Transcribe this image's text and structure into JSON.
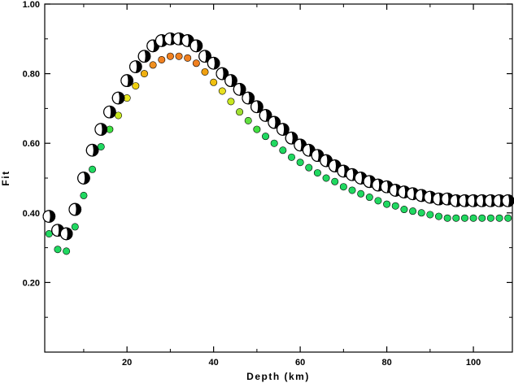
{
  "chart_data": {
    "type": "scatter",
    "title": "",
    "xlabel": "Depth (km)",
    "ylabel": "Fit",
    "xlim": [
      1,
      109
    ],
    "ylim": [
      0.0,
      1.0
    ],
    "x_ticks": [
      20,
      40,
      60,
      80,
      100
    ],
    "y_ticks": [
      0.2,
      0.4,
      0.6,
      0.8,
      1.0
    ],
    "x_tick_labels": [
      "20",
      "40",
      "60",
      "80",
      "100"
    ],
    "y_tick_labels": [
      "0.20",
      "0.40",
      "0.60",
      "0.80",
      "1.00"
    ],
    "grid": false,
    "legend": "none",
    "series": [
      {
        "role": "best-fit mechanism (beach ball)",
        "marker": "focal-mechanism",
        "x": [
          2,
          4,
          6,
          8,
          10,
          12,
          14,
          16,
          18,
          20,
          22,
          24,
          26,
          28,
          30,
          32,
          34,
          36,
          38,
          40,
          42,
          44,
          46,
          48,
          50,
          52,
          54,
          56,
          58,
          60,
          62,
          64,
          66,
          68,
          70,
          72,
          74,
          76,
          78,
          80,
          82,
          84,
          86,
          88,
          90,
          92,
          94,
          96,
          98,
          100,
          102,
          104,
          106,
          108
        ],
        "y": [
          0.39,
          0.35,
          0.34,
          0.41,
          0.5,
          0.58,
          0.64,
          0.69,
          0.73,
          0.78,
          0.82,
          0.85,
          0.88,
          0.895,
          0.9,
          0.9,
          0.895,
          0.88,
          0.85,
          0.83,
          0.8,
          0.78,
          0.755,
          0.73,
          0.705,
          0.68,
          0.66,
          0.64,
          0.615,
          0.595,
          0.58,
          0.565,
          0.55,
          0.535,
          0.52,
          0.51,
          0.5,
          0.49,
          0.48,
          0.475,
          0.465,
          0.46,
          0.455,
          0.45,
          0.445,
          0.44,
          0.44,
          0.435,
          0.435,
          0.435,
          0.435,
          0.435,
          0.435,
          0.435
        ]
      },
      {
        "role": "fit of alternative solution (colored by quality)",
        "marker": "circle",
        "x": [
          2,
          4,
          6,
          8,
          10,
          12,
          14,
          16,
          18,
          20,
          22,
          24,
          26,
          28,
          30,
          32,
          34,
          36,
          38,
          40,
          42,
          44,
          46,
          48,
          50,
          52,
          54,
          56,
          58,
          60,
          62,
          64,
          66,
          68,
          70,
          72,
          74,
          76,
          78,
          80,
          82,
          84,
          86,
          88,
          90,
          92,
          94,
          96,
          98,
          100,
          102,
          104,
          106,
          108
        ],
        "y": [
          0.34,
          0.295,
          0.29,
          0.36,
          0.45,
          0.525,
          0.59,
          0.64,
          0.68,
          0.73,
          0.765,
          0.8,
          0.825,
          0.84,
          0.85,
          0.85,
          0.845,
          0.83,
          0.805,
          0.775,
          0.75,
          0.72,
          0.69,
          0.665,
          0.64,
          0.62,
          0.6,
          0.58,
          0.56,
          0.545,
          0.53,
          0.515,
          0.5,
          0.49,
          0.475,
          0.465,
          0.455,
          0.445,
          0.435,
          0.425,
          0.42,
          0.41,
          0.405,
          0.4,
          0.395,
          0.39,
          0.385,
          0.385,
          0.385,
          0.385,
          0.385,
          0.385,
          0.385,
          0.385
        ],
        "colors": [
          "#20d860",
          "#20d860",
          "#20d860",
          "#20d860",
          "#20d860",
          "#20d860",
          "#20d860",
          "#40e040",
          "#c8e820",
          "#e8e820",
          "#f0d010",
          "#f0b010",
          "#f09020",
          "#f08020",
          "#f08020",
          "#f08020",
          "#f08020",
          "#f08020",
          "#f0a010",
          "#f0c010",
          "#e8e020",
          "#c8e820",
          "#a0e030",
          "#60e040",
          "#40e040",
          "#20d860",
          "#20d860",
          "#20d860",
          "#20d860",
          "#20d860",
          "#20d860",
          "#20d860",
          "#20d860",
          "#20d860",
          "#20d860",
          "#20d860",
          "#20d860",
          "#20d860",
          "#20d860",
          "#20d860",
          "#20d860",
          "#20d860",
          "#20d860",
          "#20d860",
          "#20d860",
          "#20d860",
          "#20d860",
          "#20d860",
          "#20d860",
          "#20d860",
          "#20d860",
          "#20d860",
          "#20d860",
          "#20d860"
        ]
      }
    ]
  }
}
